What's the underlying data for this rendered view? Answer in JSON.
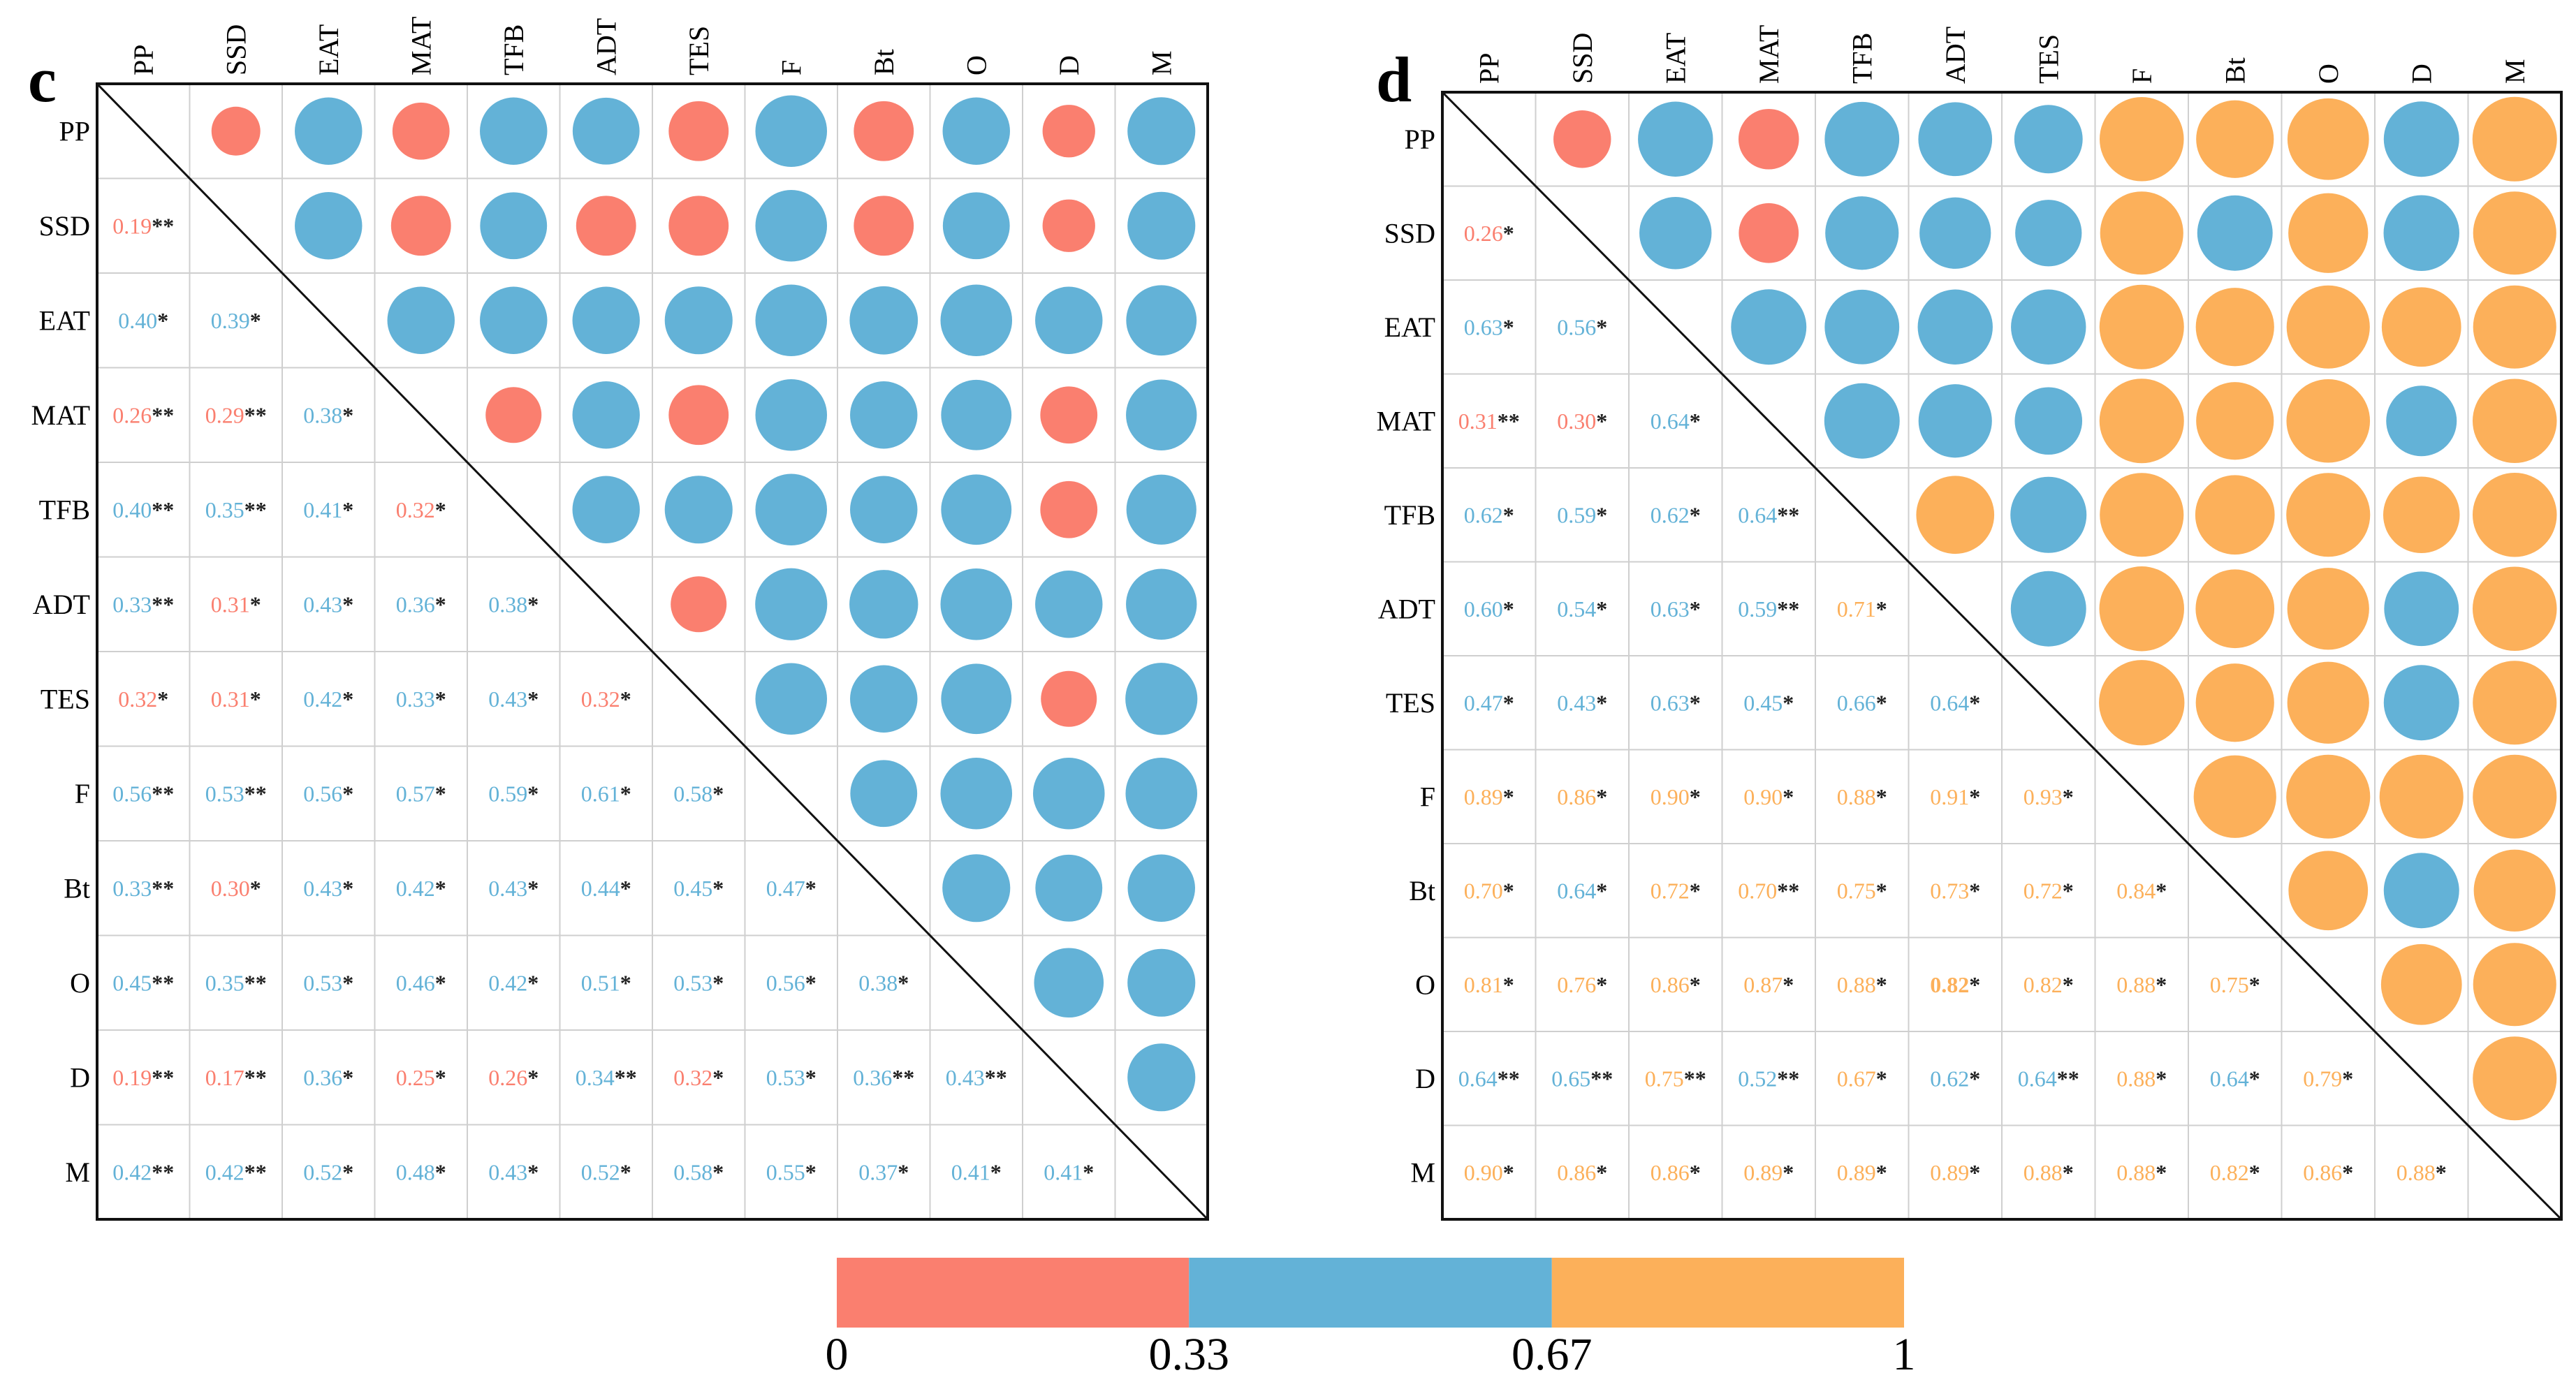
{
  "colors": {
    "low": "#FA7F6F",
    "mid": "#63B2D7",
    "high": "#FCB05A",
    "star": "#222222",
    "grid": "#cfcfcf",
    "frame": "#111111"
  },
  "colorbar": {
    "tick_labels": [
      "0",
      "0.33",
      "0.67",
      "1"
    ],
    "thresholds": [
      0.33,
      0.67
    ]
  },
  "chart_data": [
    {
      "type": "heatmap",
      "panel_label": "c",
      "variables": [
        "PP",
        "SSD",
        "EAT",
        "MAT",
        "TFB",
        "ADT",
        "TES",
        "F",
        "Bt",
        "O",
        "D",
        "M"
      ],
      "lower_values": [
        [],
        [
          0.19
        ],
        [
          0.4,
          0.39
        ],
        [
          0.26,
          0.29,
          0.38
        ],
        [
          0.4,
          0.35,
          0.41,
          0.32
        ],
        [
          0.33,
          0.31,
          0.43,
          0.36,
          0.38
        ],
        [
          0.32,
          0.31,
          0.42,
          0.33,
          0.43,
          0.32
        ],
        [
          0.56,
          0.53,
          0.56,
          0.57,
          0.59,
          0.61,
          0.58
        ],
        [
          0.33,
          0.3,
          0.43,
          0.42,
          0.43,
          0.44,
          0.45,
          0.47
        ],
        [
          0.45,
          0.35,
          0.53,
          0.46,
          0.42,
          0.51,
          0.53,
          0.56,
          0.38
        ],
        [
          0.19,
          0.17,
          0.36,
          0.25,
          0.26,
          0.34,
          0.32,
          0.53,
          0.36,
          0.43
        ],
        [
          0.42,
          0.42,
          0.52,
          0.48,
          0.43,
          0.52,
          0.58,
          0.55,
          0.37,
          0.41,
          0.41
        ]
      ],
      "lower_labels": [
        [],
        [
          "0.19"
        ],
        [
          "0.40",
          "0.39"
        ],
        [
          "0.26",
          "0.29",
          "0.38"
        ],
        [
          "0.40",
          "0.35",
          "0.41",
          "0.32"
        ],
        [
          "0.33",
          "0.31",
          "0.43",
          "0.36",
          "0.38"
        ],
        [
          "0.32",
          "0.31",
          "0.42",
          "0.33",
          "0.43",
          "0.32"
        ],
        [
          "0.56",
          "0.53",
          "0.56",
          "0.57",
          "0.59",
          "0.61",
          "0.58"
        ],
        [
          "0.33",
          "0.30",
          "0.43",
          "0.42",
          "0.43",
          "0.44",
          "0.45",
          "0.47"
        ],
        [
          "0.45",
          "0.35",
          "0.53",
          "0.46",
          "0.42",
          "0.51",
          "0.53",
          "0.56",
          "0.38"
        ],
        [
          "0.19",
          "0.17",
          "0.36",
          "0.25",
          "0.26",
          "0.34",
          "0.32",
          "0.53",
          "0.36",
          "0.43"
        ],
        [
          "0.42",
          "0.42",
          "0.52",
          "0.48",
          "0.43",
          "0.52",
          "0.58",
          "0.55",
          "0.37",
          "0.41",
          "0.41"
        ]
      ],
      "lower_stars": [
        [],
        [
          "**"
        ],
        [
          "*",
          "*"
        ],
        [
          "**",
          "**",
          "*"
        ],
        [
          "**",
          "**",
          "*",
          "*"
        ],
        [
          "**",
          "*",
          "*",
          "*",
          "*"
        ],
        [
          "*",
          "*",
          "*",
          "*",
          "*",
          "*"
        ],
        [
          "**",
          "**",
          "*",
          "*",
          "*",
          "*",
          "*"
        ],
        [
          "**",
          "*",
          "*",
          "*",
          "*",
          "*",
          "*",
          "*"
        ],
        [
          "**",
          "**",
          "*",
          "*",
          "*",
          "*",
          "*",
          "*",
          "*"
        ],
        [
          "**",
          "**",
          "*",
          "*",
          "*",
          "**",
          "*",
          "*",
          "**",
          "**"
        ],
        [
          "**",
          "**",
          "*",
          "*",
          "*",
          "*",
          "*",
          "*",
          "*",
          "*",
          "*"
        ]
      ],
      "upper_circles": [
        [
          0.14,
          0.46,
          0.26,
          0.46,
          0.45,
          0.31,
          0.56,
          0.31,
          0.46,
          0.19,
          0.47
        ],
        [
          0.46,
          0.31,
          0.45,
          0.31,
          0.31,
          0.56,
          0.31,
          0.45,
          0.19,
          0.47
        ],
        [
          0.46,
          0.46,
          0.46,
          0.47,
          0.56,
          0.48,
          0.56,
          0.46,
          0.53
        ],
        [
          0.24,
          0.46,
          0.31,
          0.56,
          0.46,
          0.53,
          0.26,
          0.54
        ],
        [
          0.46,
          0.47,
          0.56,
          0.46,
          0.53,
          0.26,
          0.52
        ],
        [
          0.24,
          0.57,
          0.49,
          0.56,
          0.46,
          0.54
        ],
        [
          0.56,
          0.46,
          0.53,
          0.24,
          0.57
        ],
        [
          0.45,
          0.56,
          0.56,
          0.56
        ],
        [
          0.47,
          0.45,
          0.46
        ],
        [
          0.51,
          0.47
        ],
        [
          0.47
        ],
        []
      ]
    },
    {
      "type": "heatmap",
      "panel_label": "d",
      "variables": [
        "PP",
        "SSD",
        "EAT",
        "MAT",
        "TFB",
        "ADT",
        "TES",
        "F",
        "Bt",
        "O",
        "D",
        "M"
      ],
      "lower_values": [
        [],
        [
          0.26
        ],
        [
          0.63,
          0.56
        ],
        [
          0.31,
          0.3,
          0.64
        ],
        [
          0.62,
          0.59,
          0.62,
          0.64
        ],
        [
          0.6,
          0.54,
          0.63,
          0.59,
          0.71
        ],
        [
          0.47,
          0.43,
          0.63,
          0.45,
          0.66,
          0.64
        ],
        [
          0.89,
          0.86,
          0.9,
          0.9,
          0.88,
          0.91,
          0.93
        ],
        [
          0.7,
          0.64,
          0.72,
          0.7,
          0.75,
          0.73,
          0.72,
          0.84
        ],
        [
          0.81,
          0.76,
          0.86,
          0.87,
          0.88,
          0.82,
          0.82,
          0.88,
          0.75
        ],
        [
          0.64,
          0.65,
          0.75,
          0.52,
          0.67,
          0.62,
          0.64,
          0.88,
          0.64,
          0.79
        ],
        [
          0.9,
          0.86,
          0.86,
          0.89,
          0.89,
          0.89,
          0.88,
          0.88,
          0.82,
          0.86,
          0.88
        ]
      ],
      "lower_labels": [
        [],
        [
          "0.26"
        ],
        [
          "0.63",
          "0.56"
        ],
        [
          "0.31",
          "0.30",
          "0.64"
        ],
        [
          "0.62",
          "0.59",
          "0.62",
          "0.64"
        ],
        [
          "0.60",
          "0.54",
          "0.63",
          "0.59",
          "0.71"
        ],
        [
          "0.47",
          "0.43",
          "0.63",
          "0.45",
          "0.66",
          "0.64"
        ],
        [
          "0.89",
          "0.86",
          "0.90",
          "0.90",
          "0.88",
          "0.91",
          "0.93"
        ],
        [
          "0.70",
          "0.64",
          "0.72",
          "0.70",
          "0.75",
          "0.73",
          "0.72",
          "0.84"
        ],
        [
          "0.81",
          "0.76",
          "0.86",
          "0.87",
          "0.88",
          "0.82",
          "0.82",
          "0.88",
          "0.75"
        ],
        [
          "0.64",
          "0.65",
          "0.75",
          "0.52",
          "0.67",
          "0.62",
          "0.64",
          "0.88",
          "0.64",
          "0.79"
        ],
        [
          "0.90",
          "0.86",
          "0.86",
          "0.89",
          "0.89",
          "0.89",
          "0.88",
          "0.88",
          "0.82",
          "0.86",
          "0.88"
        ]
      ],
      "lower_stars": [
        [],
        [
          "*"
        ],
        [
          "*",
          "*"
        ],
        [
          "**",
          "*",
          "*"
        ],
        [
          "*",
          "*",
          "*",
          "**"
        ],
        [
          "*",
          "*",
          "*",
          "**",
          "*"
        ],
        [
          "*",
          "*",
          "*",
          "*",
          "*",
          "*"
        ],
        [
          "*",
          "*",
          "*",
          "*",
          "*",
          "*",
          "*"
        ],
        [
          "*",
          "*",
          "*",
          "**",
          "*",
          "*",
          "*",
          "*"
        ],
        [
          "*",
          "*",
          "*",
          "*",
          "*",
          "*",
          "*",
          "*",
          "*"
        ],
        [
          "**",
          "**",
          "**",
          "**",
          "*",
          "*",
          "**",
          "*",
          "*",
          "*"
        ],
        [
          "*",
          "*",
          "*",
          "*",
          "*",
          "*",
          "*",
          "*",
          "*",
          "*",
          "*"
        ]
      ],
      "lower_bold": [
        [
          9,
          5
        ]
      ],
      "upper_circles": [
        [
          0.26,
          0.63,
          0.31,
          0.62,
          0.6,
          0.47,
          0.89,
          0.7,
          0.81,
          0.64,
          0.9
        ],
        [
          0.56,
          0.3,
          0.59,
          0.54,
          0.43,
          0.86,
          0.64,
          0.76,
          0.65,
          0.86
        ],
        [
          0.64,
          0.62,
          0.63,
          0.63,
          0.9,
          0.72,
          0.86,
          0.75,
          0.86
        ],
        [
          0.64,
          0.59,
          0.45,
          0.9,
          0.7,
          0.87,
          0.52,
          0.89
        ],
        [
          0.71,
          0.66,
          0.88,
          0.75,
          0.88,
          0.67,
          0.89
        ],
        [
          0.64,
          0.91,
          0.73,
          0.82,
          0.62,
          0.89
        ],
        [
          0.93,
          0.72,
          0.82,
          0.64,
          0.88
        ],
        [
          0.84,
          0.88,
          0.88,
          0.88
        ],
        [
          0.75,
          0.64,
          0.82
        ],
        [
          0.79,
          0.86
        ],
        [
          0.88
        ],
        []
      ]
    }
  ]
}
